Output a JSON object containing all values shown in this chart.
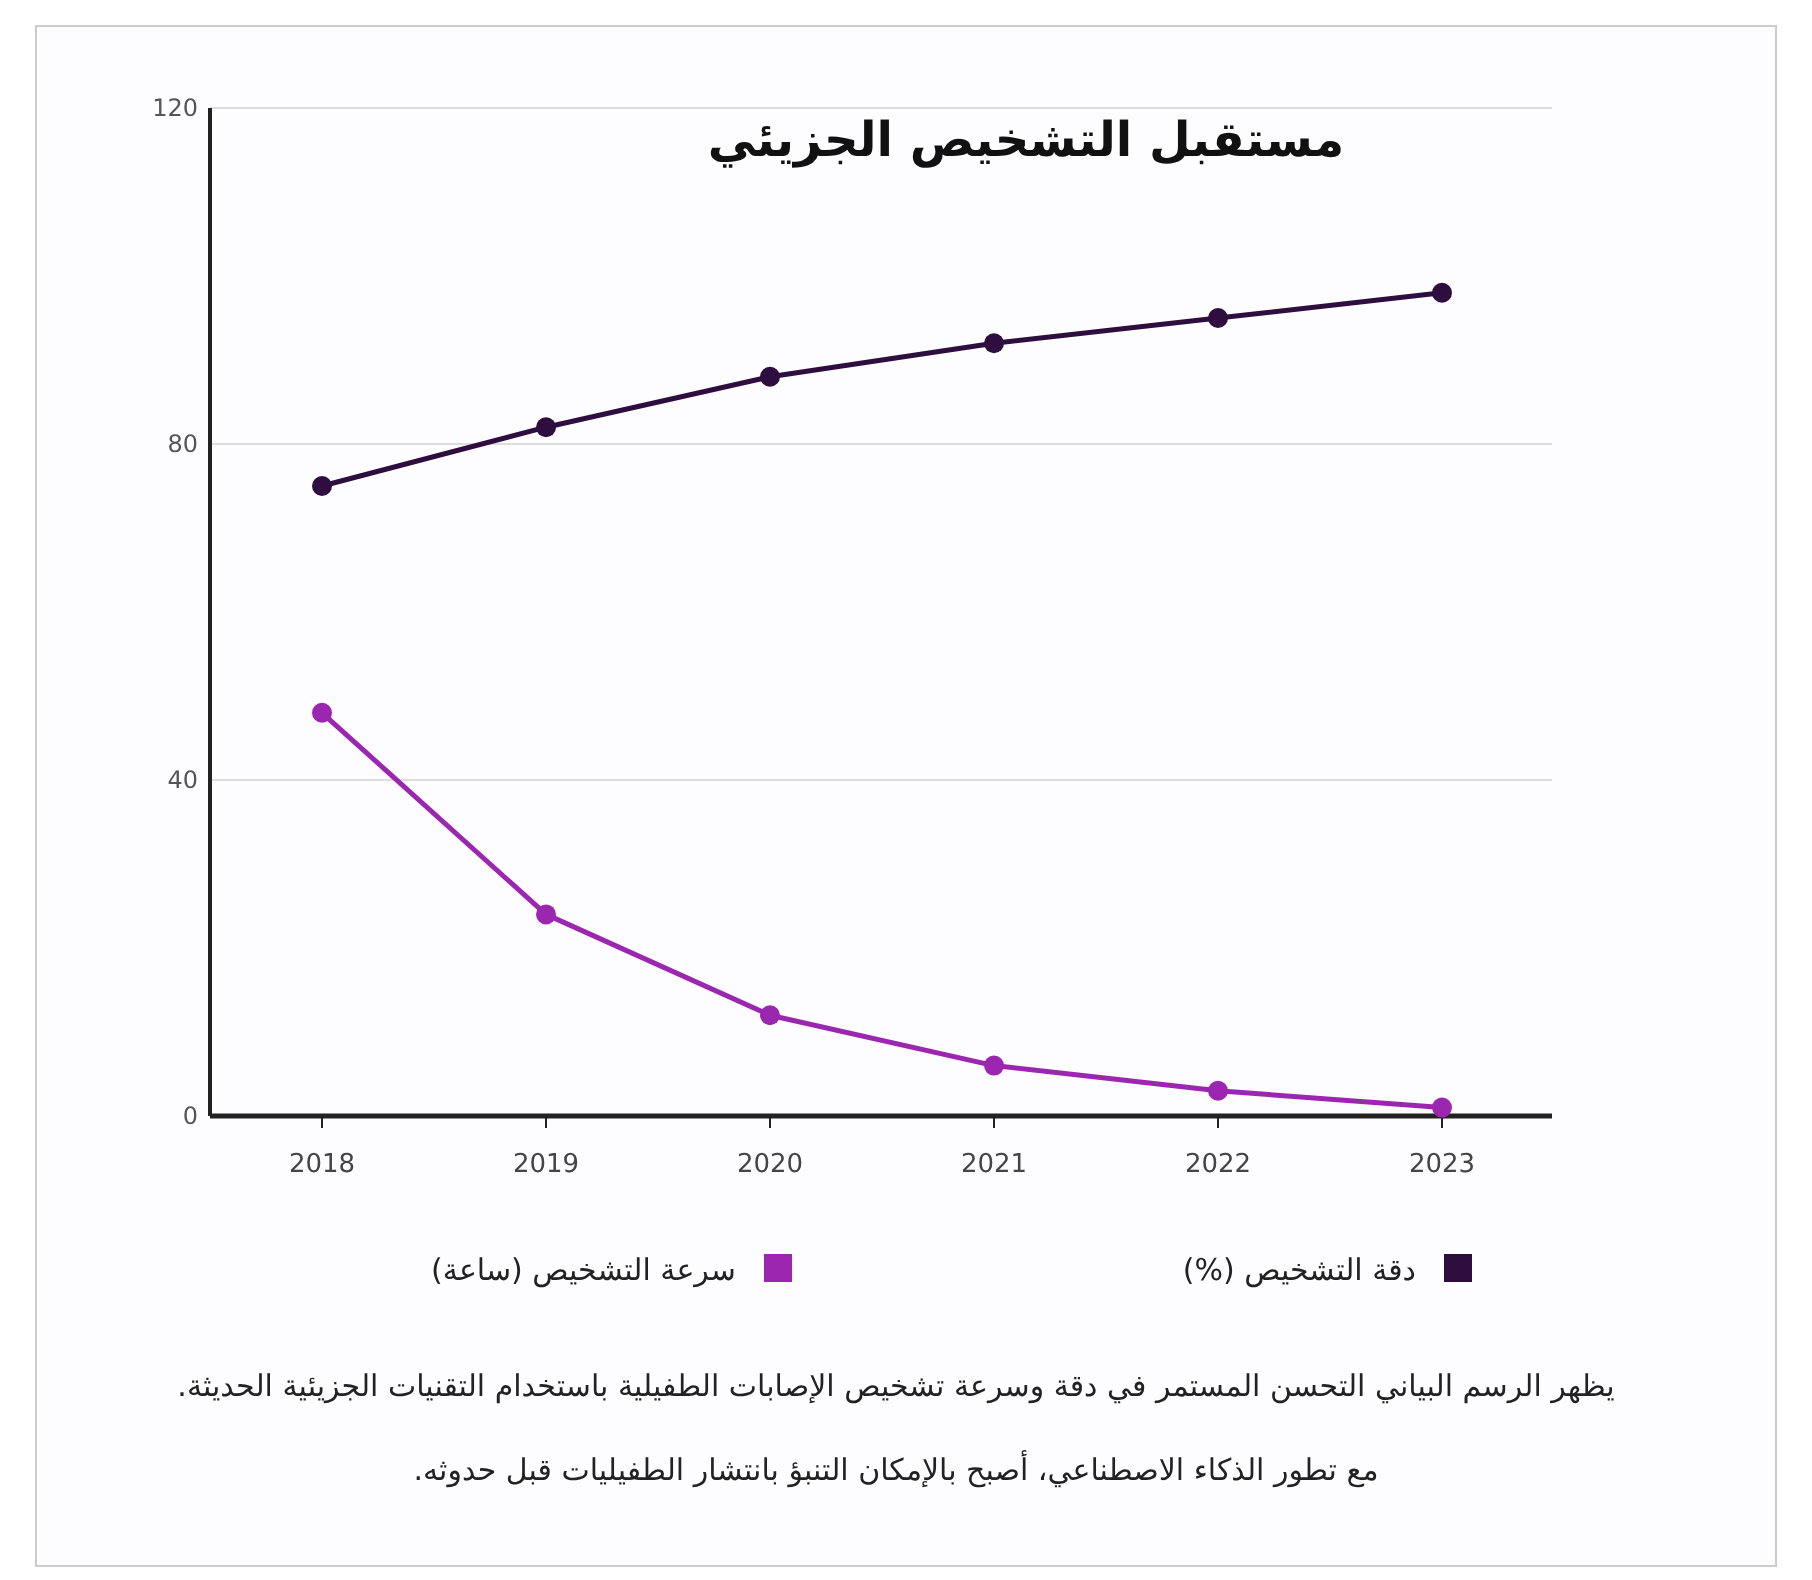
{
  "chart_data": {
    "type": "line",
    "title": "مستقبل التشخيص الجزيئي",
    "categories": [
      "2018",
      "2019",
      "2020",
      "2021",
      "2022",
      "2023"
    ],
    "series": [
      {
        "name": "دقة التشخيص (%)",
        "color": "#2e0d3f",
        "values": [
          75,
          82,
          88,
          92,
          95,
          98
        ]
      },
      {
        "name": "سرعة التشخيص (ساعة)",
        "color": "#9b27b0",
        "values": [
          48,
          24,
          12,
          6,
          3,
          1
        ]
      }
    ],
    "ylim": [
      0,
      120
    ],
    "yticks": [
      0,
      40,
      80,
      120
    ],
    "grid": "y",
    "legend": "bottom",
    "marker": "circle",
    "line_style": "solid",
    "annotations": [
      "يظهر الرسم البياني التحسن المستمر في دقة وسرعة تشخيص الإصابات الطفيلية باستخدام التقنيات الجزيئية الحديثة.",
      "مع تطور الذكاء الاصطناعي، أصبح بالإمكان التنبؤ بانتشار الطفيليات قبل حدوثه."
    ]
  }
}
